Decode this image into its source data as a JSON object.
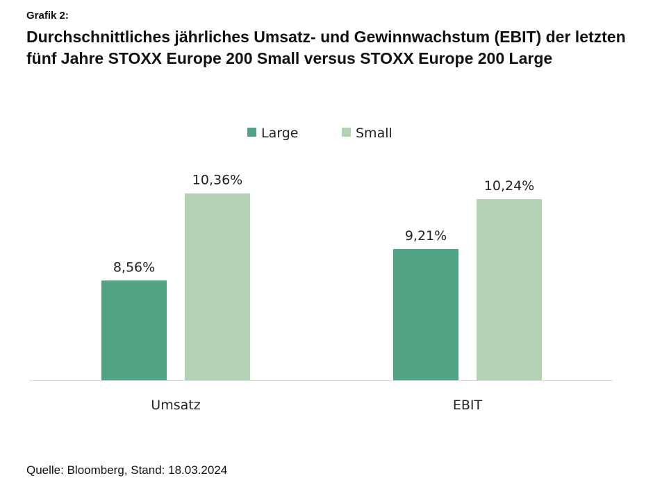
{
  "header": {
    "pretitle": "Grafik 2:",
    "title": "Durchschnittliches jährliches Umsatz- und Gewinnwachstum (EBIT) der letzten fünf Jahre STOXX Europe 200 Small versus STOXX Europe 200 Large"
  },
  "source": "Quelle: Bloomberg, Stand: 18.03.2024",
  "chart_data": {
    "type": "bar",
    "categories": [
      "Umsatz",
      "EBIT"
    ],
    "series": [
      {
        "name": "Large",
        "values": [
          8.56,
          9.21
        ],
        "labels": [
          "8,56%",
          "9,21%"
        ],
        "color": "#52a383"
      },
      {
        "name": "Small",
        "values": [
          10.36,
          10.24
        ],
        "labels": [
          "10,36%",
          "10,24%"
        ],
        "color": "#b3d2b3"
      }
    ],
    "ylim": [
      6.5,
      10.8
    ],
    "grid": false,
    "legend": "top-center",
    "xlabel": "",
    "ylabel": ""
  }
}
